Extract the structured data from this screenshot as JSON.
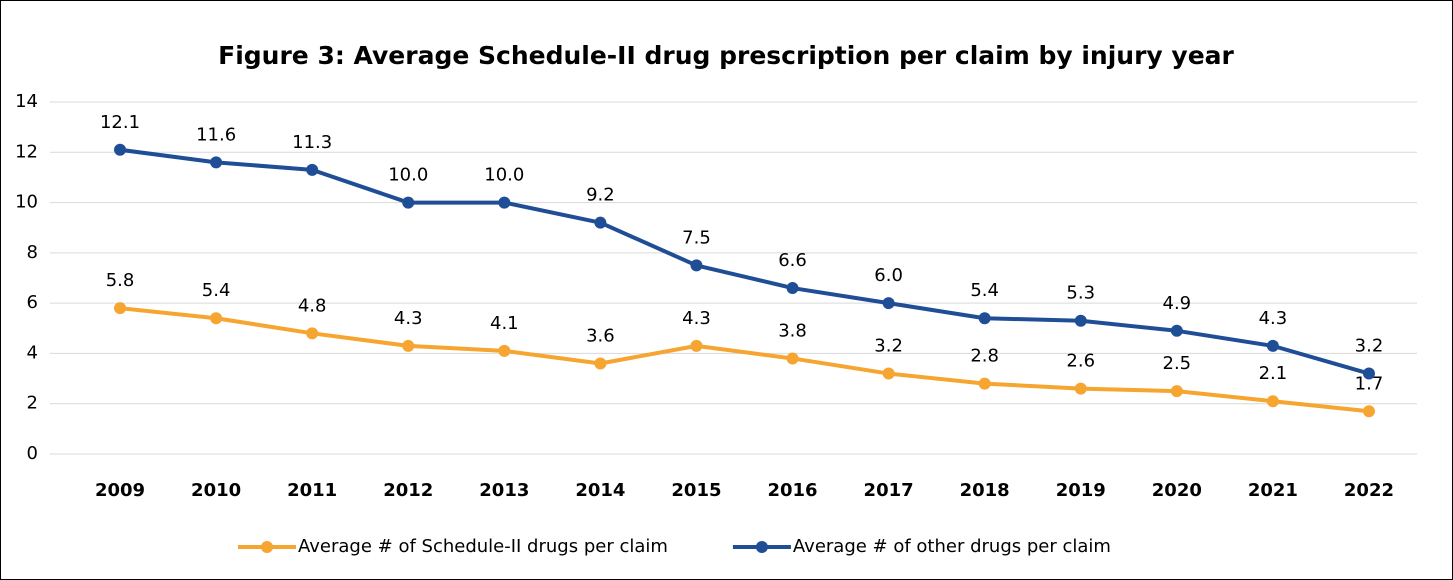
{
  "chart_data": {
    "type": "line",
    "title": "Figure 3: Average Schedule-II drug prescription per claim by injury year",
    "categories": [
      "2009",
      "2010",
      "2011",
      "2012",
      "2013",
      "2014",
      "2015",
      "2016",
      "2017",
      "2018",
      "2019",
      "2020",
      "2021",
      "2022"
    ],
    "series": [
      {
        "name": "Average # of Schedule-II drugs per claim",
        "color": "#f5a530",
        "values": [
          5.8,
          5.4,
          4.8,
          4.3,
          4.1,
          3.6,
          4.3,
          3.8,
          3.2,
          2.8,
          2.6,
          2.5,
          2.1,
          1.7
        ],
        "value_labels": [
          "5.8",
          "5.4",
          "4.8",
          "4.3",
          "4.1",
          "3.6",
          "4.3",
          "3.8",
          "3.2",
          "2.8",
          "2.6",
          "2.5",
          "2.1",
          "1.7"
        ]
      },
      {
        "name": "Average # of other drugs per claim",
        "color": "#1f4e96",
        "values": [
          12.1,
          11.6,
          11.3,
          10,
          10,
          9.2,
          7.5,
          6.6,
          6,
          5.4,
          5.3,
          4.9,
          4.3,
          3.2
        ],
        "value_labels": [
          "12.1",
          "11.6",
          "11.3",
          "10.0",
          "10.0",
          "9.2",
          "7.5",
          "6.6",
          "6.0",
          "5.4",
          "5.3",
          "4.9",
          "4.3",
          "3.2"
        ]
      }
    ],
    "ylim": [
      0,
      14
    ],
    "yticks": [
      0,
      2,
      4,
      6,
      8,
      10,
      12,
      14
    ],
    "grid": true,
    "legend": "bottom"
  }
}
